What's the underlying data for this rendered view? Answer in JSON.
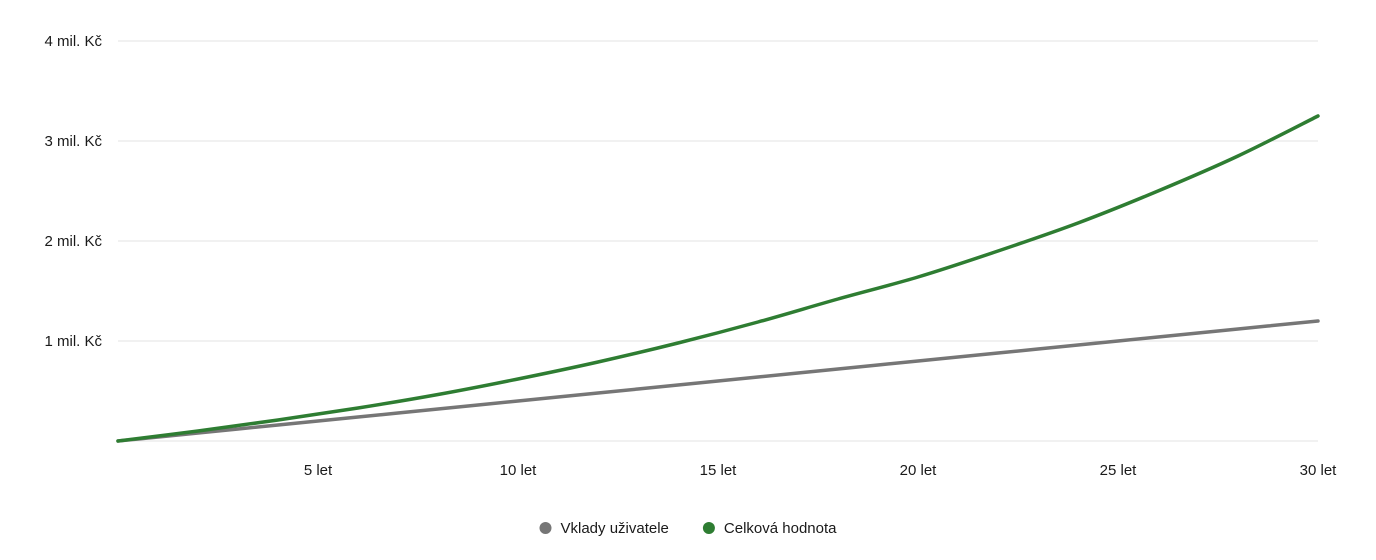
{
  "chart_data": {
    "type": "line",
    "title": "",
    "xlabel": "",
    "ylabel": "",
    "xlim": [
      0,
      30
    ],
    "ylim": [
      0,
      4000000
    ],
    "grid": true,
    "legend_position": "bottom-center",
    "x_ticks": [
      {
        "value": 5,
        "label": "5 let"
      },
      {
        "value": 10,
        "label": "10 let"
      },
      {
        "value": 15,
        "label": "15 let"
      },
      {
        "value": 20,
        "label": "20 let"
      },
      {
        "value": 25,
        "label": "25 let"
      },
      {
        "value": 30,
        "label": "30 let"
      }
    ],
    "y_ticks": [
      {
        "value": 1000000,
        "label": "1 mil. Kč"
      },
      {
        "value": 2000000,
        "label": "2 mil. Kč"
      },
      {
        "value": 3000000,
        "label": "3 mil. Kč"
      },
      {
        "value": 4000000,
        "label": "4 mil. Kč"
      }
    ],
    "x": [
      0,
      2,
      4,
      6,
      8,
      10,
      12,
      14,
      16,
      18,
      20,
      22,
      24,
      26,
      28,
      30
    ],
    "series": [
      {
        "name": "Vklady uživatele",
        "color": "#767676",
        "values": [
          0,
          80000,
          160000,
          240000,
          320000,
          400000,
          480000,
          560000,
          640000,
          720000,
          800000,
          880000,
          960000,
          1040000,
          1120000,
          1200000
        ]
      },
      {
        "name": "Celková hodnota",
        "color": "#2e7d32",
        "values": [
          0,
          100000,
          210000,
          330000,
          465000,
          620000,
          790000,
          980000,
          1190000,
          1420000,
          1640000,
          1900000,
          2180000,
          2500000,
          2850000,
          3250000
        ]
      }
    ]
  }
}
